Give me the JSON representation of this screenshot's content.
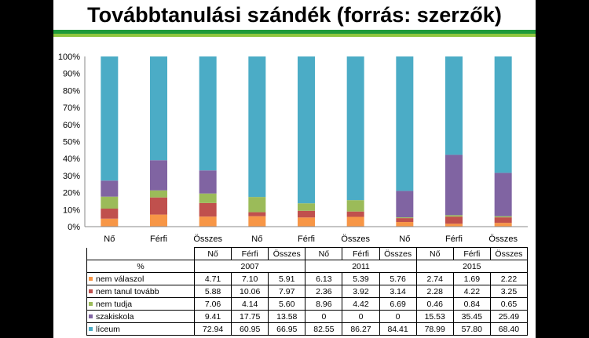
{
  "page": {
    "title": "Továbbtanulási szándék (forrás: szerzők)"
  },
  "chart_data": {
    "type": "bar",
    "stacked": true,
    "percent_stacked": true,
    "categories": [
      "Nő",
      "Férfi",
      "Összes",
      "Nő",
      "Férfi",
      "Összes",
      "Nő",
      "Férfi",
      "Összes"
    ],
    "groups": [
      "2007",
      "2011",
      "2015"
    ],
    "ylim": [
      0,
      100
    ],
    "yticks": [
      "0%",
      "10%",
      "20%",
      "30%",
      "40%",
      "50%",
      "60%",
      "70%",
      "80%",
      "90%",
      "100%"
    ],
    "grid": false,
    "unit_label": "%",
    "series": [
      {
        "name": "nem válaszol",
        "color": "#f79646",
        "values": [
          4.71,
          7.1,
          5.91,
          6.13,
          5.39,
          5.76,
          2.74,
          1.69,
          2.22
        ]
      },
      {
        "name": "nem tanul tovább",
        "color": "#c0504d",
        "values": [
          5.88,
          10.06,
          7.97,
          2.36,
          3.92,
          3.14,
          2.28,
          4.22,
          3.25
        ]
      },
      {
        "name": "nem tudja",
        "color": "#9bbb59",
        "values": [
          7.06,
          4.14,
          5.6,
          8.96,
          4.42,
          6.69,
          0.46,
          0.84,
          0.65
        ]
      },
      {
        "name": "szakiskola",
        "color": "#8064a2",
        "values": [
          9.41,
          17.75,
          13.58,
          0,
          0,
          0,
          15.53,
          35.45,
          25.49
        ]
      },
      {
        "name": "líceum",
        "color": "#4bacc6",
        "values": [
          72.94,
          60.95,
          66.95,
          82.55,
          86.27,
          84.41,
          78.99,
          57.8,
          68.4
        ]
      }
    ],
    "table_values": [
      [
        "4.71",
        "7.10",
        "5.91",
        "6.13",
        "5.39",
        "5.76",
        "2.74",
        "1.69",
        "2.22"
      ],
      [
        "5.88",
        "10.06",
        "7.97",
        "2.36",
        "3.92",
        "3.14",
        "2.28",
        "4.22",
        "3.25"
      ],
      [
        "7.06",
        "4.14",
        "5.60",
        "8.96",
        "4.42",
        "6.69",
        "0.46",
        "0.84",
        "0.65"
      ],
      [
        "9.41",
        "17.75",
        "13.58",
        "0",
        "0",
        "0",
        "15.53",
        "35.45",
        "25.49"
      ],
      [
        "72.94",
        "60.95",
        "66.95",
        "82.55",
        "86.27",
        "84.41",
        "78.99",
        "57.80",
        "68.40"
      ]
    ]
  }
}
